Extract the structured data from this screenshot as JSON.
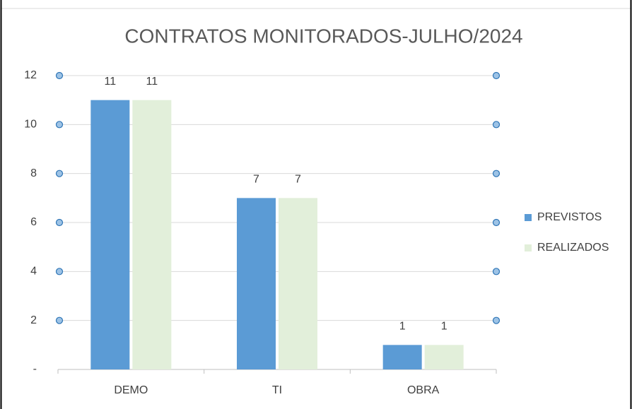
{
  "chart_data": {
    "type": "bar",
    "title": "CONTRATOS MONITORADOS-JULHO/2024",
    "categories": [
      "DEMO",
      "TI",
      "OBRA"
    ],
    "series": [
      {
        "name": "PREVISTOS",
        "color": "#5b9bd5",
        "values": [
          11,
          7,
          1
        ]
      },
      {
        "name": "REALIZADOS",
        "color": "#e2efda",
        "values": [
          11,
          7,
          1
        ]
      }
    ],
    "ylim": [
      0,
      12
    ],
    "yticks": [
      {
        "value": 0,
        "label": "-"
      },
      2,
      4,
      6,
      8,
      10,
      12
    ],
    "grid": true,
    "legend": "right"
  }
}
